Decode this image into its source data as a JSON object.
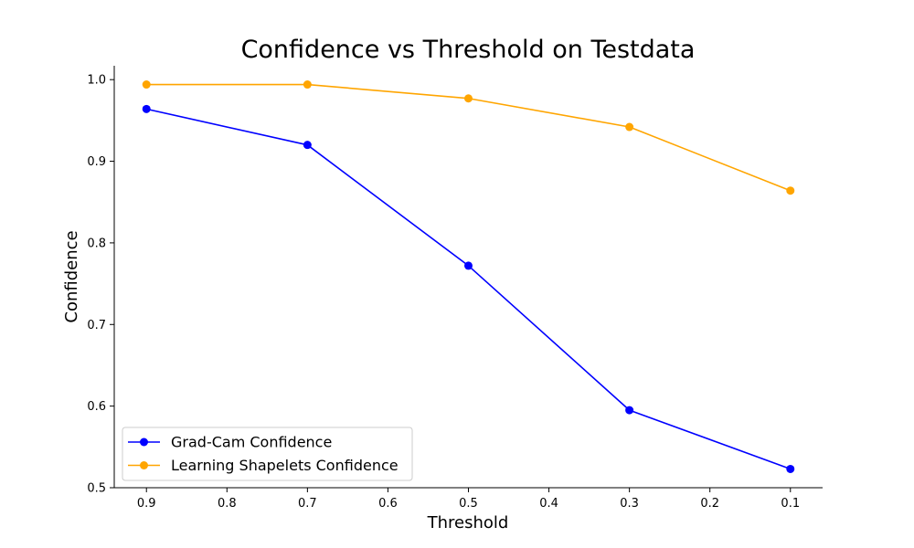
{
  "chart_data": {
    "type": "line",
    "title": "Confidence vs Threshold on Testdata",
    "xlabel": "Threshold",
    "ylabel": "Confidence",
    "x": [
      0.9,
      0.7,
      0.5,
      0.3,
      0.1
    ],
    "xlim": [
      0.94,
      0.06
    ],
    "x_inverted": true,
    "ylim": [
      0.5,
      1.017
    ],
    "xticks": [
      0.9,
      0.8,
      0.7,
      0.6,
      0.5,
      0.4,
      0.3,
      0.2,
      0.1
    ],
    "xtick_labels": [
      "0.9",
      "0.8",
      "0.7",
      "0.6",
      "0.5",
      "0.4",
      "0.3",
      "0.2",
      "0.1"
    ],
    "yticks": [
      0.5,
      0.6,
      0.7,
      0.8,
      0.9,
      1.0
    ],
    "ytick_labels": [
      "0.5",
      "0.6",
      "0.7",
      "0.8",
      "0.9",
      "1.0"
    ],
    "grid": false,
    "legend_position": "lower-left",
    "series": [
      {
        "name": "Grad-Cam Confidence",
        "color": "#0000ff",
        "marker": "circle",
        "values": [
          0.964,
          0.92,
          0.772,
          0.595,
          0.523
        ]
      },
      {
        "name": "Learning Shapelets Confidence",
        "color": "#ffa500",
        "marker": "circle",
        "values": [
          0.994,
          0.994,
          0.977,
          0.942,
          0.864
        ]
      }
    ]
  }
}
